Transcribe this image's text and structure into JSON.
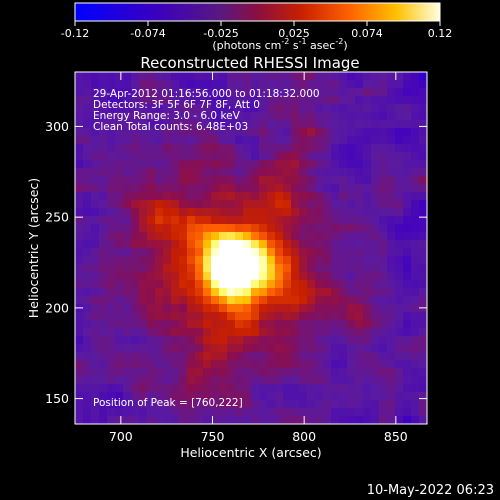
{
  "chart_data": {
    "type": "heatmap",
    "title": "Reconstructed RHESSI Image",
    "xlabel": "Heliocentric X (arcsec)",
    "ylabel": "Heliocentric Y (arcsec)",
    "xlim": [
      675,
      867
    ],
    "ylim": [
      136,
      330
    ],
    "xticks": [
      700,
      750,
      800,
      850
    ],
    "yticks": [
      150,
      200,
      250,
      300
    ],
    "colorbar": {
      "min": -0.12,
      "max": 0.12,
      "ticks": [
        "-0.12",
        "-0.074",
        "-0.025",
        "0.025",
        "0.074",
        "0.12"
      ],
      "label_prefix": "(photons cm",
      "label_exp1": "-2",
      "label_mid": " s",
      "label_exp2": "-1",
      "label_mid2": " asec",
      "label_exp3": "-2",
      "label_suffix": ")"
    },
    "annotations": [
      "29-Apr-2012 01:16:56.000 to 01:18:32.000",
      "Detectors: 3F 5F 6F 7F 8F, Att 0",
      "Energy Range: 3.0 - 6.0 keV",
      "Clean     Total counts: 6.48E+03"
    ],
    "peak_label": "Position of Peak = [760,222]",
    "peak": {
      "x": 760,
      "y": 222
    },
    "colormap": [
      "#0000ff",
      "#4000c0",
      "#5a1aa0",
      "#8a0f50",
      "#c82000",
      "#ff6000",
      "#ffc000",
      "#ffff80",
      "#ffffff"
    ]
  },
  "footer": {
    "timestamp": "10-May-2022 06:23"
  }
}
